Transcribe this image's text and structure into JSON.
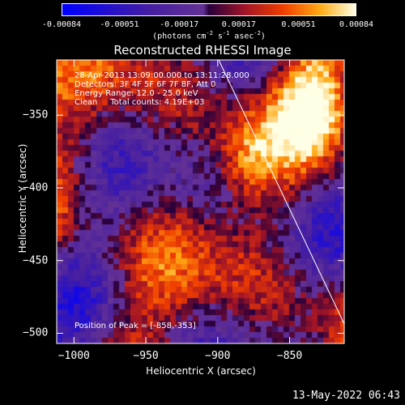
{
  "chart_data": {
    "type": "heatmap",
    "title": "Reconstructed RHESSI Image",
    "xlabel": "Heliocentric X (arcsec)",
    "ylabel": "Heliocentric Y (arcsec)",
    "xlim": [
      -1012,
      -812
    ],
    "ylim": [
      -507,
      -312
    ],
    "xticks": [
      -1000,
      -950,
      -900,
      -850
    ],
    "yticks": [
      -350,
      -400,
      -450,
      -500
    ],
    "colorbar": {
      "label": "(photons cm^-2 s^-1 asec^-2)",
      "ticks": [
        "-0.00084",
        "-0.00051",
        "-0.00017",
        "0.00017",
        "0.00051",
        "0.00084"
      ],
      "range": [
        -0.00084,
        0.00084
      ]
    },
    "annotations": [
      "28-Apr-2013 13:09:00.000 to 13:11:28.000",
      "Detectors: 3F 4F 5F 6F 7F 8F, Att 0",
      "Energy Range: 12.0 - 25.0 keV",
      "Clean     Total counts: 4.19E+03"
    ],
    "peak_label": "Position of Peak = [-858,-353]",
    "peak": [
      -858,
      -353
    ]
  },
  "labels": {
    "cb_label_main": "(photons cm",
    "cb_exp1": "-2",
    "cb_mid": " s",
    "cb_exp2": "-1",
    "cb_mid2": " asec",
    "cb_exp3": "-2",
    "cb_end": ")"
  },
  "footer": "13-May-2022 06:43"
}
